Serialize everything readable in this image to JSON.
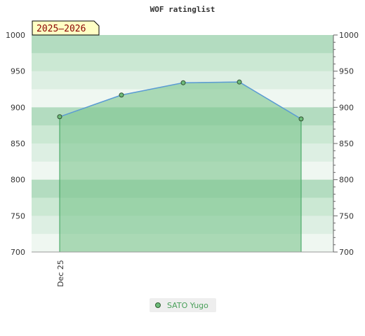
{
  "chart_data": {
    "type": "area",
    "title": "WOF ratinglist",
    "season_badge": "2025–2026",
    "xlabel": "",
    "ylabel": "",
    "ylim": [
      700,
      1000
    ],
    "yticks": [
      700,
      750,
      800,
      850,
      900,
      950,
      1000
    ],
    "xtick_labels": [
      "Dec 25"
    ],
    "grid": true,
    "legend_position": "bottom-center",
    "series": [
      {
        "name": "SATO Yugo",
        "values": [
          887,
          917,
          934,
          935,
          884
        ],
        "line_color": "#5b9bd5",
        "fill_color": "#7cc48e",
        "marker_color": "#6dbb7a"
      }
    ]
  }
}
